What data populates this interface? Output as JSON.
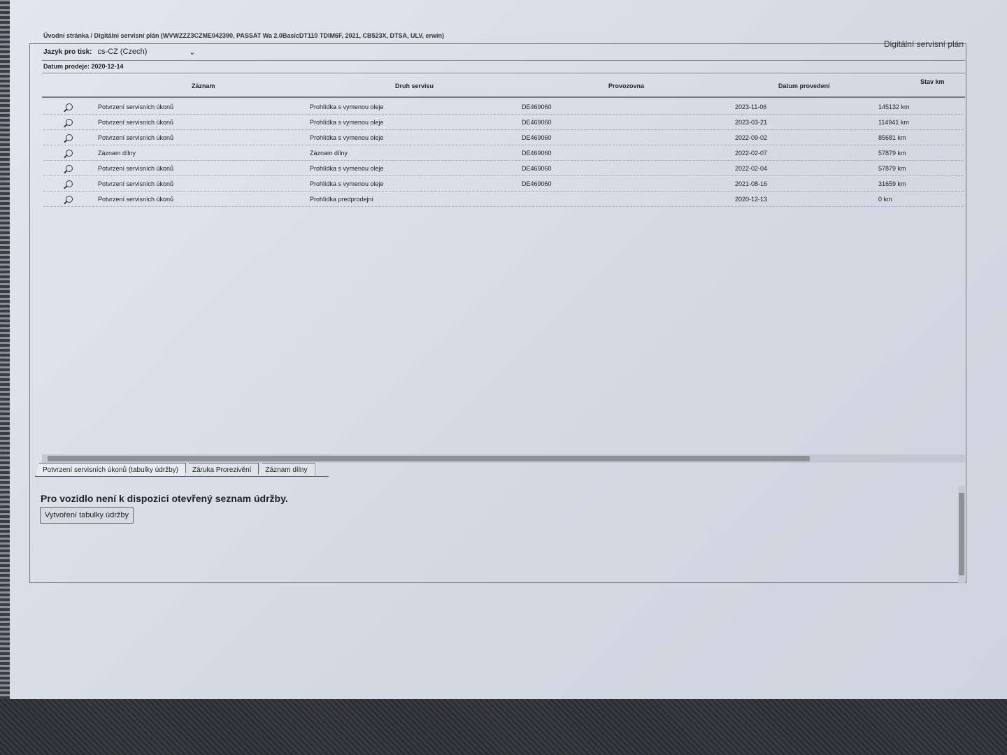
{
  "breadcrumb": "Úvodní stránka / Digitální servisní plán (WVWZZZ3CZME042390, PASSAT Wa 2.0BasicDT110 TDIM6F, 2021, CB523X, DTSA, ULV, erwin)",
  "language": {
    "label": "Jazyk pro tisk:",
    "value": "cs-CZ (Czech)"
  },
  "page_title": "Digitální servisní plán",
  "sale_date": "Datum prodeje: 2020-12-14",
  "table": {
    "headers": [
      "Záznam",
      "Druh servisu",
      "Provozovna",
      "Datum provedení",
      "Stav km"
    ],
    "rows": [
      [
        "Potvrzení servisních úkonů",
        "Prohlídka s vymenou oleje",
        "DE469060",
        "2023-11-06",
        "145132 km"
      ],
      [
        "Potvrzení servisních úkonů",
        "Prohlídka s vymenou oleje",
        "DE469060",
        "2023-03-21",
        "114941 km"
      ],
      [
        "Potvrzení servisních úkonů",
        "Prohlídka s vymenou oleje",
        "DE469060",
        "2022-09-02",
        "85681 km"
      ],
      [
        "Záznam dílny",
        "Záznam dílny",
        "DE469060",
        "2022-02-07",
        "57879 km"
      ],
      [
        "Potvrzení servisních úkonů",
        "Prohlídka s vymenou oleje",
        "DE469060",
        "2022-02-04",
        "57879 km"
      ],
      [
        "Potvrzení servisních úkonů",
        "Prohlídka s vymenou oleje",
        "DE469060",
        "2021-08-16",
        "31659 km"
      ],
      [
        "Potvrzení servisních úkonů",
        "Prohlídka predprodejní",
        "",
        "2020-12-13",
        "0 km"
      ]
    ]
  },
  "tabs": [
    "Potvrzení servisních úkonů (tabulky údržby)",
    "Záruka Prorezivění",
    "Záznam dílny"
  ],
  "message": "Pro vozidlo není k dispozici otevřený seznam údržby.",
  "create_button": "Vytvoření tabulky údržby"
}
